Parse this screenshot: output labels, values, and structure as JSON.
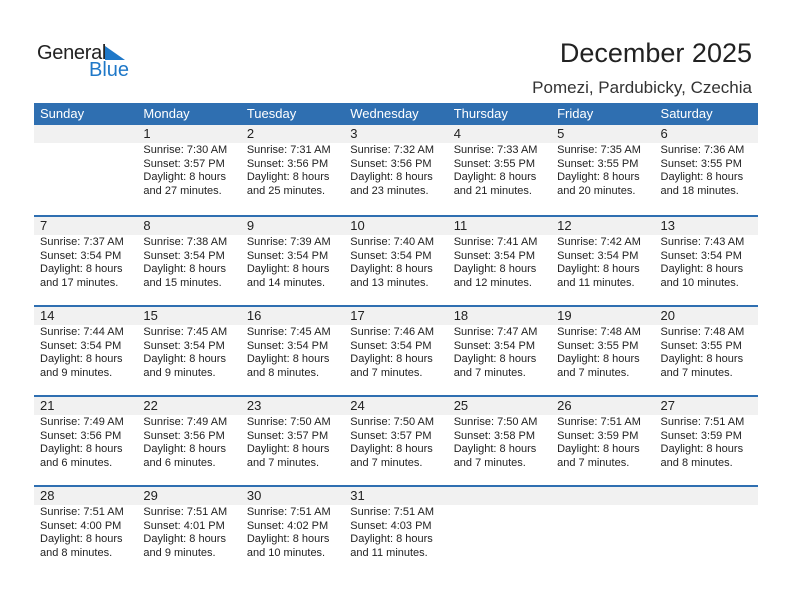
{
  "logo": {
    "general": "General",
    "blue": "Blue",
    "accent": "#1f78c8"
  },
  "header": {
    "title": "December 2025",
    "location": "Pomezi, Pardubicky, Czechia"
  },
  "colors": {
    "header_bg": "#2f6fb1",
    "date_strip": "#f1f1f1"
  },
  "days": [
    "Sunday",
    "Monday",
    "Tuesday",
    "Wednesday",
    "Thursday",
    "Friday",
    "Saturday"
  ],
  "weeks": [
    [
      null,
      {
        "day": "1",
        "sunrise": "Sunrise: 7:30 AM",
        "sunset": "Sunset: 3:57 PM",
        "daylight": "Daylight: 8 hours",
        "minutes": "and 27 minutes."
      },
      {
        "day": "2",
        "sunrise": "Sunrise: 7:31 AM",
        "sunset": "Sunset: 3:56 PM",
        "daylight": "Daylight: 8 hours",
        "minutes": "and 25 minutes."
      },
      {
        "day": "3",
        "sunrise": "Sunrise: 7:32 AM",
        "sunset": "Sunset: 3:56 PM",
        "daylight": "Daylight: 8 hours",
        "minutes": "and 23 minutes."
      },
      {
        "day": "4",
        "sunrise": "Sunrise: 7:33 AM",
        "sunset": "Sunset: 3:55 PM",
        "daylight": "Daylight: 8 hours",
        "minutes": "and 21 minutes."
      },
      {
        "day": "5",
        "sunrise": "Sunrise: 7:35 AM",
        "sunset": "Sunset: 3:55 PM",
        "daylight": "Daylight: 8 hours",
        "minutes": "and 20 minutes."
      },
      {
        "day": "6",
        "sunrise": "Sunrise: 7:36 AM",
        "sunset": "Sunset: 3:55 PM",
        "daylight": "Daylight: 8 hours",
        "minutes": "and 18 minutes."
      }
    ],
    [
      {
        "day": "7",
        "sunrise": "Sunrise: 7:37 AM",
        "sunset": "Sunset: 3:54 PM",
        "daylight": "Daylight: 8 hours",
        "minutes": "and 17 minutes."
      },
      {
        "day": "8",
        "sunrise": "Sunrise: 7:38 AM",
        "sunset": "Sunset: 3:54 PM",
        "daylight": "Daylight: 8 hours",
        "minutes": "and 15 minutes."
      },
      {
        "day": "9",
        "sunrise": "Sunrise: 7:39 AM",
        "sunset": "Sunset: 3:54 PM",
        "daylight": "Daylight: 8 hours",
        "minutes": "and 14 minutes."
      },
      {
        "day": "10",
        "sunrise": "Sunrise: 7:40 AM",
        "sunset": "Sunset: 3:54 PM",
        "daylight": "Daylight: 8 hours",
        "minutes": "and 13 minutes."
      },
      {
        "day": "11",
        "sunrise": "Sunrise: 7:41 AM",
        "sunset": "Sunset: 3:54 PM",
        "daylight": "Daylight: 8 hours",
        "minutes": "and 12 minutes."
      },
      {
        "day": "12",
        "sunrise": "Sunrise: 7:42 AM",
        "sunset": "Sunset: 3:54 PM",
        "daylight": "Daylight: 8 hours",
        "minutes": "and 11 minutes."
      },
      {
        "day": "13",
        "sunrise": "Sunrise: 7:43 AM",
        "sunset": "Sunset: 3:54 PM",
        "daylight": "Daylight: 8 hours",
        "minutes": "and 10 minutes."
      }
    ],
    [
      {
        "day": "14",
        "sunrise": "Sunrise: 7:44 AM",
        "sunset": "Sunset: 3:54 PM",
        "daylight": "Daylight: 8 hours",
        "minutes": "and 9 minutes."
      },
      {
        "day": "15",
        "sunrise": "Sunrise: 7:45 AM",
        "sunset": "Sunset: 3:54 PM",
        "daylight": "Daylight: 8 hours",
        "minutes": "and 9 minutes."
      },
      {
        "day": "16",
        "sunrise": "Sunrise: 7:45 AM",
        "sunset": "Sunset: 3:54 PM",
        "daylight": "Daylight: 8 hours",
        "minutes": "and 8 minutes."
      },
      {
        "day": "17",
        "sunrise": "Sunrise: 7:46 AM",
        "sunset": "Sunset: 3:54 PM",
        "daylight": "Daylight: 8 hours",
        "minutes": "and 7 minutes."
      },
      {
        "day": "18",
        "sunrise": "Sunrise: 7:47 AM",
        "sunset": "Sunset: 3:54 PM",
        "daylight": "Daylight: 8 hours",
        "minutes": "and 7 minutes."
      },
      {
        "day": "19",
        "sunrise": "Sunrise: 7:48 AM",
        "sunset": "Sunset: 3:55 PM",
        "daylight": "Daylight: 8 hours",
        "minutes": "and 7 minutes."
      },
      {
        "day": "20",
        "sunrise": "Sunrise: 7:48 AM",
        "sunset": "Sunset: 3:55 PM",
        "daylight": "Daylight: 8 hours",
        "minutes": "and 7 minutes."
      }
    ],
    [
      {
        "day": "21",
        "sunrise": "Sunrise: 7:49 AM",
        "sunset": "Sunset: 3:56 PM",
        "daylight": "Daylight: 8 hours",
        "minutes": "and 6 minutes."
      },
      {
        "day": "22",
        "sunrise": "Sunrise: 7:49 AM",
        "sunset": "Sunset: 3:56 PM",
        "daylight": "Daylight: 8 hours",
        "minutes": "and 6 minutes."
      },
      {
        "day": "23",
        "sunrise": "Sunrise: 7:50 AM",
        "sunset": "Sunset: 3:57 PM",
        "daylight": "Daylight: 8 hours",
        "minutes": "and 7 minutes."
      },
      {
        "day": "24",
        "sunrise": "Sunrise: 7:50 AM",
        "sunset": "Sunset: 3:57 PM",
        "daylight": "Daylight: 8 hours",
        "minutes": "and 7 minutes."
      },
      {
        "day": "25",
        "sunrise": "Sunrise: 7:50 AM",
        "sunset": "Sunset: 3:58 PM",
        "daylight": "Daylight: 8 hours",
        "minutes": "and 7 minutes."
      },
      {
        "day": "26",
        "sunrise": "Sunrise: 7:51 AM",
        "sunset": "Sunset: 3:59 PM",
        "daylight": "Daylight: 8 hours",
        "minutes": "and 7 minutes."
      },
      {
        "day": "27",
        "sunrise": "Sunrise: 7:51 AM",
        "sunset": "Sunset: 3:59 PM",
        "daylight": "Daylight: 8 hours",
        "minutes": "and 8 minutes."
      }
    ],
    [
      {
        "day": "28",
        "sunrise": "Sunrise: 7:51 AM",
        "sunset": "Sunset: 4:00 PM",
        "daylight": "Daylight: 8 hours",
        "minutes": "and 8 minutes."
      },
      {
        "day": "29",
        "sunrise": "Sunrise: 7:51 AM",
        "sunset": "Sunset: 4:01 PM",
        "daylight": "Daylight: 8 hours",
        "minutes": "and 9 minutes."
      },
      {
        "day": "30",
        "sunrise": "Sunrise: 7:51 AM",
        "sunset": "Sunset: 4:02 PM",
        "daylight": "Daylight: 8 hours",
        "minutes": "and 10 minutes."
      },
      {
        "day": "31",
        "sunrise": "Sunrise: 7:51 AM",
        "sunset": "Sunset: 4:03 PM",
        "daylight": "Daylight: 8 hours",
        "minutes": "and 11 minutes."
      },
      null,
      null,
      null
    ]
  ]
}
